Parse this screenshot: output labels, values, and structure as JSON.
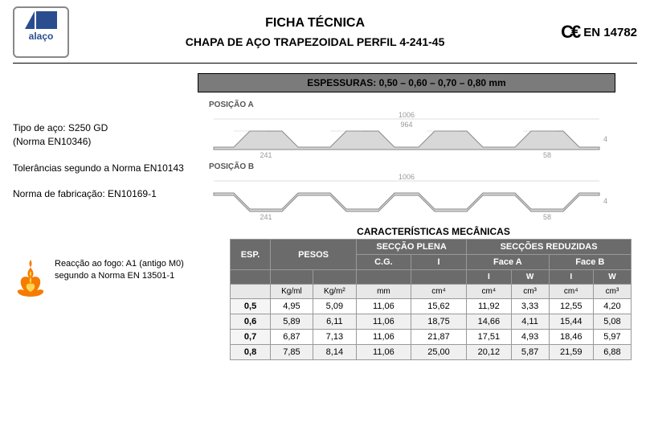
{
  "header": {
    "logo_text": "alaço",
    "title1": "FICHA TÉCNICA",
    "title2": "CHAPA DE AÇO TRAPEZOIDAL PERFIL 4-241-45",
    "ce_label": "EN 14782"
  },
  "thickness_bar": "ESPESSURAS:  0,50 – 0,60 – 0,70 – 0,80 mm",
  "left_info": {
    "line1a": "Tipo de aço: S250 GD",
    "line1b": "(Norma EN10346)",
    "line2": "Tolerâncias segundo a Norma EN10143",
    "line3": "Norma de fabricação: EN10169-1"
  },
  "profiles": {
    "labelA": "POSIÇÃO A",
    "labelB": "POSIÇÃO B",
    "dim_top": "1006",
    "dim_mid": "964",
    "dim_botA": "241",
    "dim_botB": "58",
    "dim_h": "45"
  },
  "fire": {
    "text1": "Reacção ao fogo: A1 (antigo M0)",
    "text2": "segundo a Norma EN 13501-1"
  },
  "table": {
    "title": "CARACTERÍSTICAS MECÂNICAS",
    "h_esp": "ESP.",
    "h_pesos": "PESOS",
    "h_plena": "SECÇÃO PLENA",
    "h_reduz": "SECÇÕES REDUZIDAS",
    "h_faceA": "Face A",
    "h_faceB": "Face B",
    "sub_cg": "C.G.",
    "sub_i": "I",
    "sub_w": "W",
    "u_kgml": "Kg/ml",
    "u_kgm2": "Kg/m²",
    "u_mm": "mm",
    "u_cm4": "cm⁴",
    "u_cm3": "cm³",
    "rows": [
      {
        "esp": "0,5",
        "kgml": "4,95",
        "kgm2": "5,09",
        "cg": "11,06",
        "ip": "15,62",
        "ia": "11,92",
        "wa": "3,33",
        "ib": "12,55",
        "wb": "4,20"
      },
      {
        "esp": "0,6",
        "kgml": "5,89",
        "kgm2": "6,11",
        "cg": "11,06",
        "ip": "18,75",
        "ia": "14,66",
        "wa": "4,11",
        "ib": "15,44",
        "wb": "5,08"
      },
      {
        "esp": "0,7",
        "kgml": "6,87",
        "kgm2": "7,13",
        "cg": "11,06",
        "ip": "21,87",
        "ia": "17,51",
        "wa": "4,93",
        "ib": "18,46",
        "wb": "5,97"
      },
      {
        "esp": "0,8",
        "kgml": "7,85",
        "kgm2": "8,14",
        "cg": "11,06",
        "ip": "25,00",
        "ia": "20,12",
        "wa": "5,87",
        "ib": "21,59",
        "wb": "6,88"
      }
    ]
  },
  "colors": {
    "header_bg": "#6b6b6b",
    "bar_bg": "#7b7b7b",
    "logo_color": "#2a4d8f"
  }
}
